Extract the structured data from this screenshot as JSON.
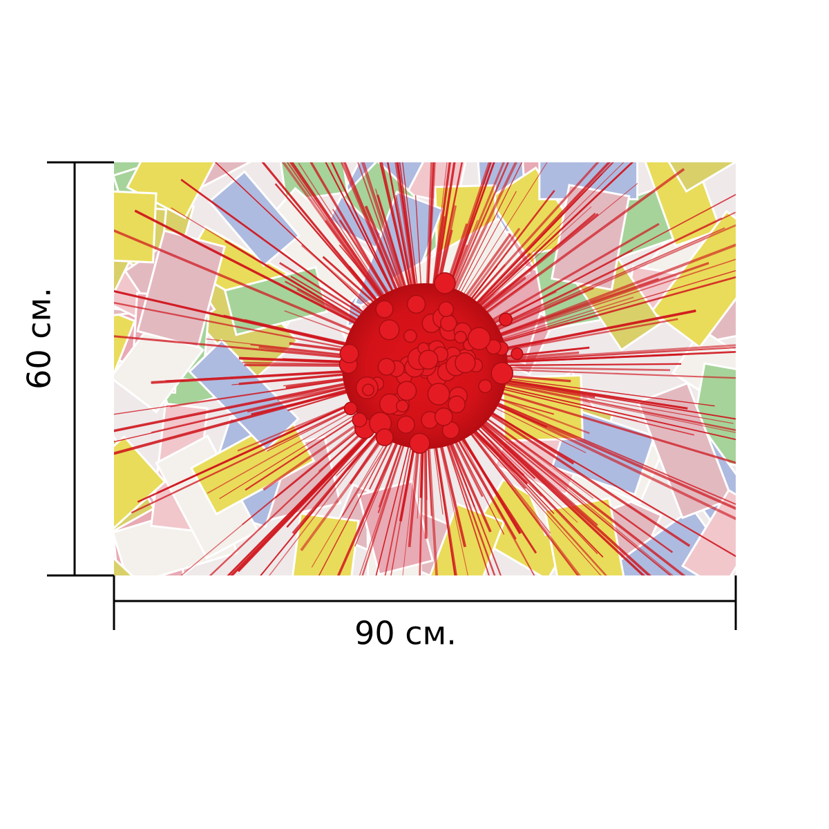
{
  "dimensions": {
    "height": {
      "label": "60 см."
    },
    "width": {
      "label": "90 см."
    }
  }
}
